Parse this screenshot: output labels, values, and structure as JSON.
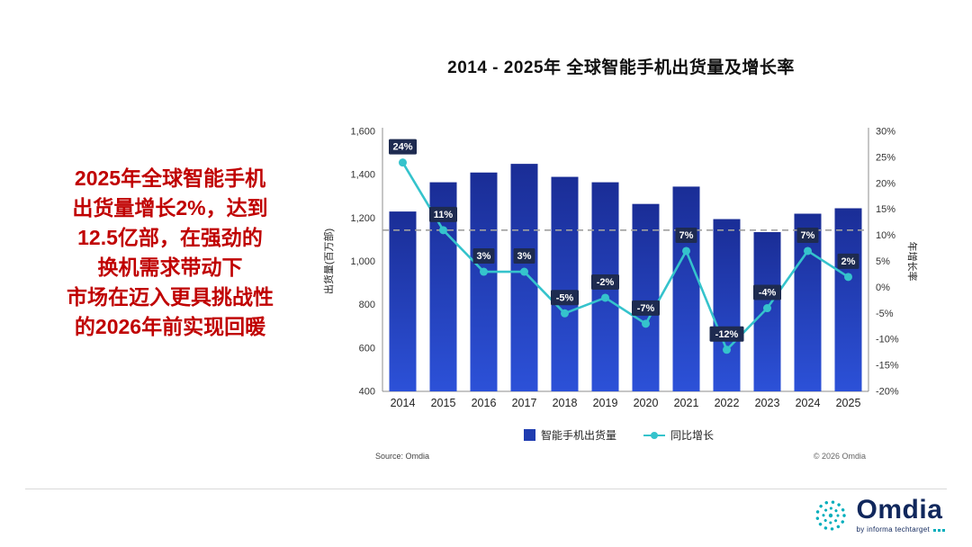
{
  "title": "2014 - 2025年 全球智能手机出货量及增长率",
  "left_text": {
    "lines": [
      "2025年全球智能手机",
      "出货量增长2%，达到",
      "12.5亿部，在强劲的",
      "换机需求带动下",
      "市场在迈入更具挑战性",
      "的2026年前实现回暖"
    ]
  },
  "chart_data": {
    "type": "bar",
    "categories": [
      "2014",
      "2015",
      "2016",
      "2017",
      "2018",
      "2019",
      "2020",
      "2021",
      "2022",
      "2023",
      "2024",
      "2025"
    ],
    "series": [
      {
        "name": "智能手机出货量",
        "kind": "bar",
        "axis": "left",
        "values": [
          1230,
          1365,
          1410,
          1450,
          1390,
          1365,
          1265,
          1345,
          1195,
          1135,
          1220,
          1245
        ]
      },
      {
        "name": "同比增长",
        "kind": "line",
        "axis": "right",
        "values": [
          24,
          11,
          3,
          3,
          -5,
          -2,
          -7,
          7,
          -12,
          -4,
          7,
          2
        ],
        "labels": [
          "24%",
          "11%",
          "3%",
          "3%",
          "-5%",
          "-2%",
          "-7%",
          "7%",
          "-12%",
          "-4%",
          "7%",
          "2%"
        ]
      }
    ],
    "ylabel_left": "出货量(百万部)",
    "ylabel_right": "年增长率",
    "ylim_left": [
      400,
      1600
    ],
    "ylim_right": [
      -20,
      30
    ],
    "ytick_labels_left": [
      "1,600",
      "1,400",
      "1,200",
      "1,000",
      "800",
      "600",
      "400"
    ],
    "ytick_values_left": [
      1600,
      1400,
      1200,
      1000,
      800,
      600,
      400
    ],
    "ytick_labels_right": [
      "30%",
      "25%",
      "20%",
      "15%",
      "10%",
      "5%",
      "0%",
      "-5%",
      "-10%",
      "-15%",
      "-20%"
    ],
    "ytick_values_right": [
      30,
      25,
      20,
      15,
      10,
      5,
      0,
      -5,
      -10,
      -15,
      -20
    ],
    "reference_line": {
      "axis": "right",
      "value": 11,
      "style": "dashed"
    },
    "grid": false,
    "legend_position": "bottom"
  },
  "legend": [
    {
      "label": "智能手机出货量",
      "shape": "square",
      "color": "#1f3cb0"
    },
    {
      "label": "同比增长",
      "shape": "line-dot",
      "color": "#35c3cc"
    }
  ],
  "source": "Source: Omdia",
  "copyright": "© 2026 Omdia",
  "logo": {
    "name": "Omdia",
    "tagline": "by informa techtarget"
  },
  "colors": {
    "bar_top": "#1a2d96",
    "bar_bottom": "#2c51d8",
    "line": "#35c3cc",
    "label_box": "#1e2b50",
    "label_text": "#ffffff",
    "reference_line": "#a0a0a0",
    "axis": "#8c8c8c",
    "tick_text": "#333333",
    "accent_red": "#c00000",
    "logo_navy": "#10275c",
    "logo_teal": "#00aebc"
  }
}
